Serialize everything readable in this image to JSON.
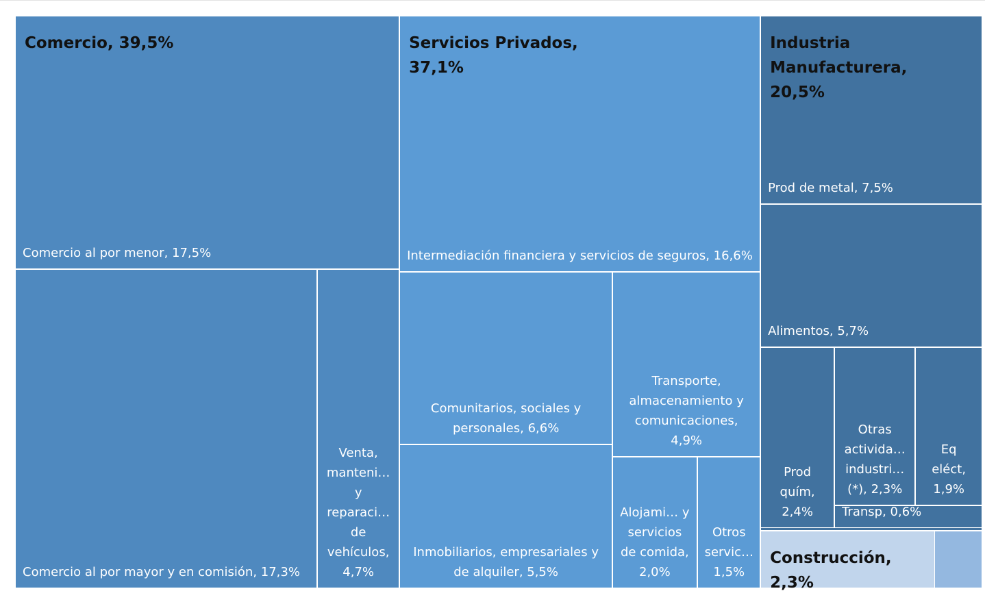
{
  "chart_data": {
    "type": "treemap",
    "groups": [
      {
        "label": "Comercio, 39,5%",
        "value": 39.5,
        "color": "#4f89bf",
        "children": [
          {
            "label": "Comercio al por menor, 17,5%",
            "value": 17.5
          },
          {
            "label": "Comercio al por mayor y en comisión, 17,3%",
            "value": 17.3
          },
          {
            "label": "Venta, manteni… y reparaci… de vehículos, 4,7%",
            "value": 4.7
          }
        ]
      },
      {
        "label": "Servicios Privados, 37,1%",
        "value": 37.1,
        "color": "#5b9bd5",
        "children": [
          {
            "label": "Intermediación financiera y servicios de seguros, 16,6%",
            "value": 16.6
          },
          {
            "label": "Comunitarios, sociales y personales, 6,6%",
            "value": 6.6
          },
          {
            "label": "Inmobiliarios, empresariales y de alquiler, 5,5%",
            "value": 5.5
          },
          {
            "label": "Transporte, almacenamiento y comunicaciones, 4,9%",
            "value": 4.9
          },
          {
            "label": "Alojami… y servicios de comida, 2,0%",
            "value": 2.0
          },
          {
            "label": "Otros servic… 1,5%",
            "value": 1.5
          }
        ]
      },
      {
        "label": "Industria Manufacturera, 20,5%",
        "value": 20.5,
        "color": "#41729f",
        "children": [
          {
            "label": "Prod de metal, 7,5%",
            "value": 7.5
          },
          {
            "label": "Alimentos, 5,7%",
            "value": 5.7
          },
          {
            "label": "Prod quím, 2,4%",
            "value": 2.4
          },
          {
            "label": "Otras activida… industri… (*), 2,3%",
            "value": 2.3
          },
          {
            "label": "Eq eléct, 1,9%",
            "value": 1.9
          },
          {
            "label": "Transp, 0,6%",
            "value": 0.6
          }
        ]
      },
      {
        "label": "Construcción, 2,3%",
        "value": 2.3,
        "color": "#c1d5ec",
        "children": []
      }
    ]
  }
}
